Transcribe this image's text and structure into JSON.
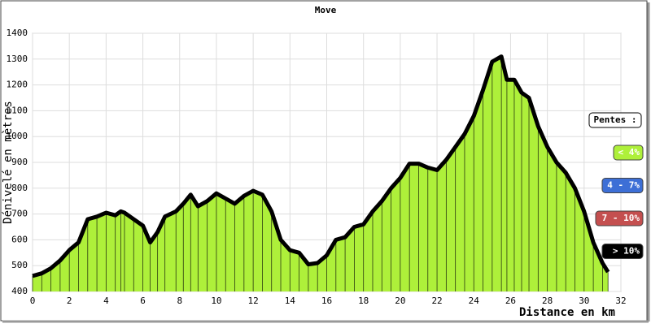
{
  "chart_data": {
    "type": "area",
    "title": "Move",
    "xlabel": "Distance en km",
    "ylabel": "Dénivelé en mètres",
    "x": [
      0,
      0.5,
      1,
      1.5,
      2,
      2.5,
      3,
      3.5,
      4,
      4.5,
      4.8,
      5,
      5.5,
      6,
      6.4,
      6.8,
      7.2,
      7.8,
      8.2,
      8.6,
      9,
      9.5,
      10,
      10.5,
      11,
      11.5,
      12,
      12.5,
      13,
      13.5,
      14,
      14.5,
      15,
      15.5,
      16,
      16.5,
      17,
      17.5,
      18,
      18.5,
      19,
      19.5,
      20,
      20.5,
      21,
      21.5,
      22,
      22.5,
      23,
      23.5,
      24,
      24.5,
      25,
      25.5,
      25.8,
      26.2,
      26.6,
      27,
      27.5,
      28,
      28.5,
      29,
      29.5,
      30,
      30.5,
      31,
      31.3
    ],
    "values": [
      460,
      470,
      490,
      520,
      560,
      590,
      680,
      690,
      705,
      695,
      710,
      705,
      680,
      655,
      590,
      630,
      690,
      710,
      740,
      775,
      730,
      750,
      780,
      760,
      740,
      770,
      790,
      775,
      710,
      600,
      560,
      550,
      505,
      510,
      540,
      600,
      610,
      650,
      660,
      710,
      750,
      800,
      840,
      895,
      895,
      880,
      870,
      910,
      960,
      1010,
      1080,
      1180,
      1290,
      1310,
      1220,
      1220,
      1170,
      1150,
      1040,
      960,
      900,
      860,
      800,
      710,
      590,
      510,
      475
    ],
    "color": "#aef03a",
    "line_color": "#000000",
    "xlim": [
      0,
      32
    ],
    "xticks": [
      0,
      2,
      4,
      6,
      8,
      10,
      12,
      14,
      16,
      18,
      20,
      22,
      24,
      26,
      28,
      30,
      32
    ],
    "ylim": [
      400,
      1400
    ],
    "yticks": [
      400,
      500,
      600,
      700,
      800,
      900,
      1000,
      1100,
      1200,
      1300,
      1400
    ],
    "grid": true,
    "legend": {
      "title": "Pentes :",
      "items": [
        {
          "label": "< 4%",
          "color": "#aef03a"
        },
        {
          "label": "4 - 7%",
          "color": "#3d6fd6"
        },
        {
          "label": "7 - 10%",
          "color": "#c44f4f"
        },
        {
          "label": "> 10%",
          "color": "#000000"
        }
      ]
    }
  }
}
